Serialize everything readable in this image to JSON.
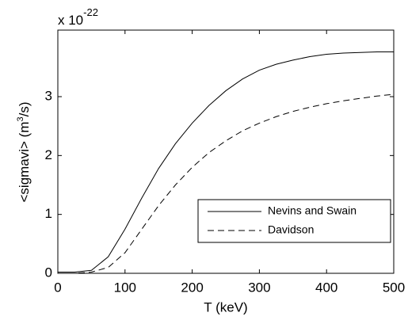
{
  "chart_data": {
    "type": "line",
    "xlabel": "T (keV)",
    "ylabel_parts": [
      "<sigmavi> (m",
      "3",
      "/s)"
    ],
    "y_scale_parts": [
      "x 10",
      "-22"
    ],
    "x": [
      0,
      25,
      50,
      75,
      100,
      125,
      150,
      175,
      200,
      225,
      250,
      275,
      300,
      325,
      350,
      375,
      400,
      425,
      450,
      475,
      500
    ],
    "series": [
      {
        "name": "Nevins and Swain",
        "color": "#000000",
        "style": "solid",
        "values": [
          0.02,
          0.02,
          0.05,
          0.28,
          0.75,
          1.28,
          1.78,
          2.2,
          2.55,
          2.85,
          3.1,
          3.3,
          3.45,
          3.55,
          3.62,
          3.68,
          3.72,
          3.74,
          3.75,
          3.76,
          3.76
        ]
      },
      {
        "name": "Davidson",
        "color": "#000000",
        "style": "dashed",
        "values": [
          0,
          0,
          0.02,
          0.1,
          0.35,
          0.75,
          1.15,
          1.5,
          1.8,
          2.05,
          2.25,
          2.42,
          2.55,
          2.66,
          2.75,
          2.82,
          2.88,
          2.93,
          2.97,
          3.01,
          3.04
        ]
      }
    ],
    "xlim": [
      0,
      500
    ],
    "xticks": [
      0,
      100,
      200,
      300,
      400,
      500
    ],
    "ylim": [
      0,
      4.13
    ],
    "yticks": [
      0,
      1,
      2,
      3
    ],
    "grid": false,
    "legend": "lower-right"
  }
}
